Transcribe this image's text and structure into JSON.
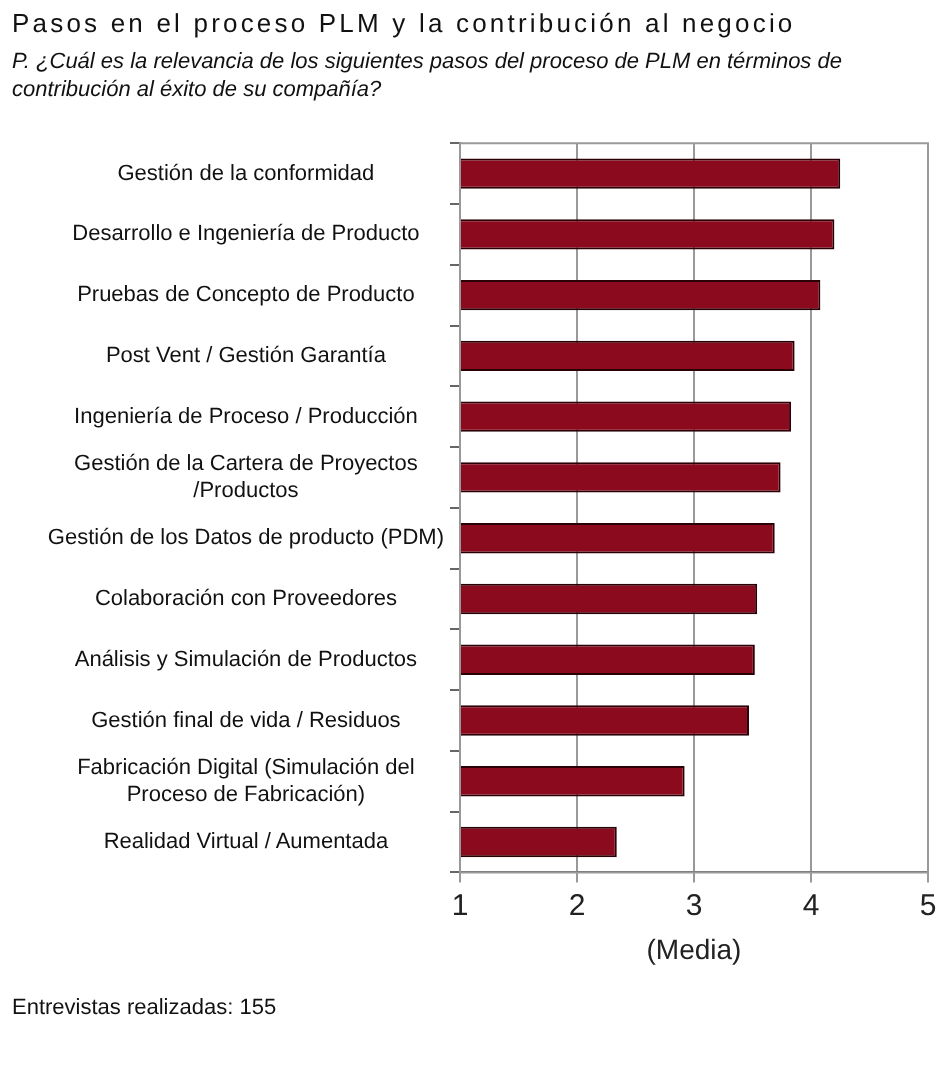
{
  "chart_data": {
    "type": "bar",
    "orientation": "horizontal",
    "title": "Pasos en el proceso PLM y la contribución al negocio",
    "subtitle": "P. ¿Cuál es la relevancia de los siguientes pasos del proceso de PLM en términos de contribución al éxito de su compañía?",
    "xlabel": "(Media)",
    "categories": [
      "Gestión de la conformidad",
      "Desarrollo e Ingeniería de Producto",
      "Pruebas de Concepto de Producto",
      "Post Vent / Gestión Garantía",
      "Ingeniería de Proceso / Producción",
      "Gestión de la Cartera de Proyectos /Productos",
      "Gestión de los Datos de producto (PDM)",
      "Colaboración con Proveedores",
      "Análisis y Simulación de Productos",
      "Gestión final de vida / Residuos",
      "Fabricación Digital (Simulación del Proceso de Fabricación)",
      "Realidad Virtual / Aumentada"
    ],
    "values": [
      4.25,
      4.2,
      4.08,
      3.86,
      3.83,
      3.74,
      3.69,
      3.54,
      3.52,
      3.47,
      2.92,
      2.34
    ],
    "color": "#8b0a1e",
    "xlim": [
      1,
      5
    ],
    "xticks": [
      1,
      2,
      3,
      4,
      5
    ],
    "grid": "x",
    "legend": false,
    "annotations": [
      "Entrevistas realizadas: 155"
    ]
  }
}
